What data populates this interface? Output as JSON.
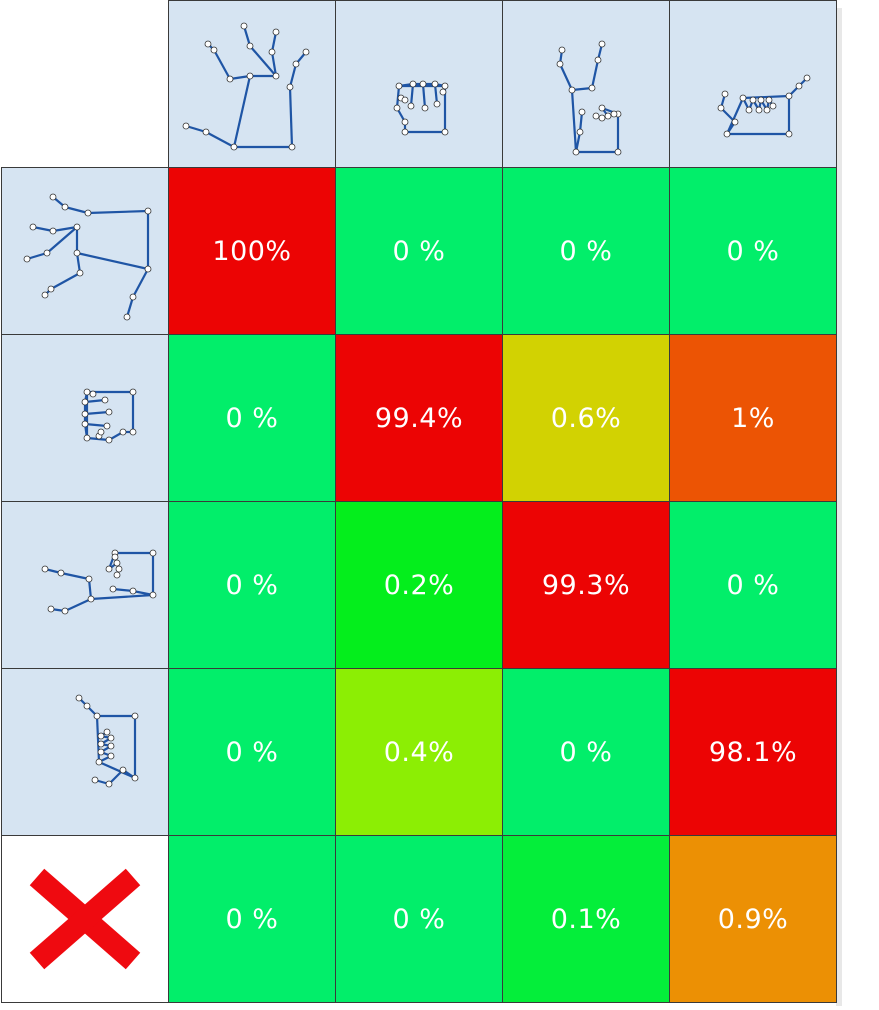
{
  "chart_data": {
    "type": "heatmap",
    "title": "",
    "xlabel": "",
    "ylabel": "",
    "columns": [
      "open-hand-gesture",
      "fist-gesture",
      "victory-gesture",
      "pinch-gesture"
    ],
    "rows": [
      "open-hand-gesture",
      "fist-gesture",
      "victory-gesture",
      "pinch-gesture",
      "no-gesture"
    ],
    "values": [
      [
        "100%",
        "0 %",
        "0 %",
        "0 %"
      ],
      [
        "0 %",
        "99.4%",
        "0.6%",
        "1%"
      ],
      [
        "0 %",
        "0.2%",
        "99.3%",
        "0 %"
      ],
      [
        "0 %",
        "0.4%",
        "0 %",
        "98.1%"
      ],
      [
        "0 %",
        "0 %",
        "0.1%",
        "0.9%"
      ]
    ],
    "cell_colors": [
      [
        "#ec0404",
        "#02ee6a",
        "#02ee6a",
        "#02ee6a"
      ],
      [
        "#02ee6a",
        "#ec0404",
        "#d2d202",
        "#ec5404"
      ],
      [
        "#02ee6a",
        "#04ee1c",
        "#ec0404",
        "#02ee6a"
      ],
      [
        "#02ee6a",
        "#8cee04",
        "#02ee6a",
        "#ec0404"
      ],
      [
        "#02ee6a",
        "#02ee6a",
        "#04ee3a",
        "#ec9004"
      ]
    ],
    "header_bg": "#d6e4f2",
    "skeleton_color": "#1f55a5",
    "reject_color": "#ef0a10"
  }
}
